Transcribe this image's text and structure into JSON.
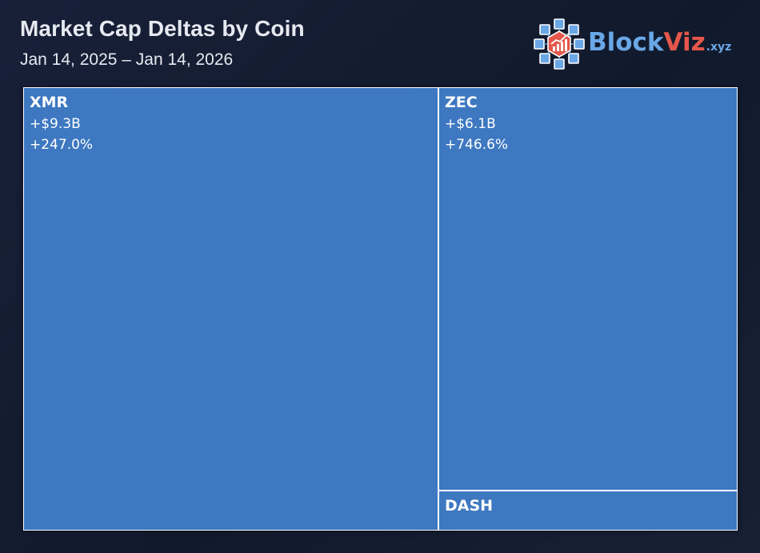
{
  "header": {
    "title": "Market Cap Deltas by Coin",
    "subtitle": "Jan 14, 2025 – Jan 14, 2026"
  },
  "brand": {
    "name_part1": "Block",
    "name_part2": "Viz",
    "suffix": ".xyz",
    "icon": "cube-network-chart-icon",
    "colors": {
      "primary": "#6aa7e6",
      "accent": "#e4574a"
    }
  },
  "colors": {
    "tile_fill": "#3d78c1",
    "tile_border": "#ffffff"
  },
  "chart_data": {
    "type": "treemap",
    "title": "Market Cap Deltas by Coin",
    "subtitle": "Jan 14, 2025 – Jan 14, 2026",
    "items": [
      {
        "name": "XMR",
        "value_label": "+$9.3B",
        "pct_label": "+247.0%",
        "value": 9.3,
        "pct": 247.0
      },
      {
        "name": "ZEC",
        "value_label": "+$6.1B",
        "pct_label": "+746.6%",
        "value": 6.1,
        "pct": 746.6
      },
      {
        "name": "DASH",
        "value_label": "",
        "pct_label": "",
        "value": 0.6,
        "pct": null
      }
    ]
  }
}
